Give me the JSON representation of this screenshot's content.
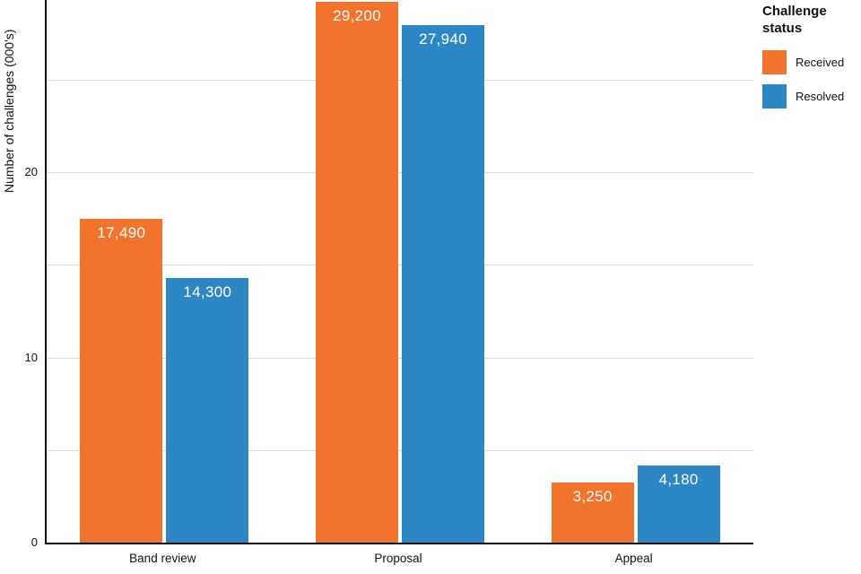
{
  "chart_data": {
    "type": "bar",
    "title": "",
    "ylabel": "Number of challenges (000's)",
    "xlabel": "",
    "categories": [
      "Band review",
      "Proposal",
      "Appeal"
    ],
    "series": [
      {
        "name": "Received",
        "color": "#F2742C",
        "values": [
          17.49,
          29.2,
          3.25
        ],
        "labels": [
          "17,490",
          "29,200",
          "3,250"
        ]
      },
      {
        "name": "Resolved",
        "color": "#2C87C4",
        "values": [
          14.3,
          27.94,
          4.18
        ],
        "labels": [
          "14,300",
          "27,940",
          "4,180"
        ]
      }
    ],
    "ylim": [
      0,
      29.3
    ],
    "yticks": [
      0,
      10,
      20
    ],
    "minor_gridlines": [
      5,
      15,
      25
    ],
    "grid": true,
    "legend_title": "Challenge status",
    "legend_position": "top-right",
    "axis_color": "#0d0d0d",
    "gridline_color": "#d9d9d9"
  },
  "legend": {
    "title": "Challenge status",
    "items": [
      {
        "label": "Received",
        "color": "#F2742C"
      },
      {
        "label": "Resolved",
        "color": "#2C87C4"
      }
    ]
  }
}
